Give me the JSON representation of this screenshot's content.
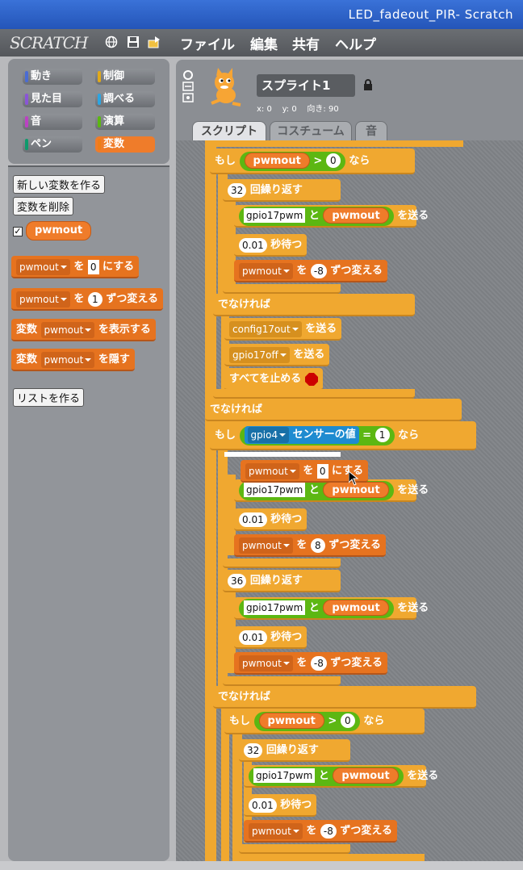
{
  "window": {
    "title": "LED_fadeout_PIR- Scratch"
  },
  "menubar": {
    "logo": "SCRATCH",
    "items": [
      "ファイル",
      "編集",
      "共有",
      "ヘルプ"
    ],
    "icons": [
      "globe-icon",
      "save-icon",
      "share-icon"
    ]
  },
  "categories": [
    {
      "label": "動き",
      "color": "#4a6cd4"
    },
    {
      "label": "制御",
      "color": "#e1a91a"
    },
    {
      "label": "見た目",
      "color": "#8a55d7"
    },
    {
      "label": "調べる",
      "color": "#2ca5e2"
    },
    {
      "label": "音",
      "color": "#bb42c3"
    },
    {
      "label": "演算",
      "color": "#5cb712"
    },
    {
      "label": "ペン",
      "color": "#0e9a6c"
    },
    {
      "label": "変数",
      "color": "#ee7d16"
    }
  ],
  "palette": {
    "new_var": "新しい変数を作る",
    "delete_var": "変数を削除",
    "var_name": "pwmout",
    "check": "✓",
    "set_block": {
      "var": "pwmout",
      "to": "を",
      "value": "0",
      "suffix": "にする"
    },
    "change_block": {
      "var": "pwmout",
      "by": "を",
      "value": "1",
      "suffix": "ずつ変える"
    },
    "show_block": {
      "prefix": "変数",
      "var": "pwmout",
      "suffix": "を表示する"
    },
    "hide_block": {
      "prefix": "変数",
      "var": "pwmout",
      "suffix": "を隠す"
    },
    "new_list": "リストを作る"
  },
  "sprite": {
    "name": "スプライト1",
    "x_label": "x:",
    "x": "0",
    "y_label": "y:",
    "y": "0",
    "dir_label": "向き:",
    "dir": "90"
  },
  "tabs": [
    "スクリプト",
    "コスチューム",
    "音"
  ],
  "script": {
    "if": "もし",
    "then": "なら",
    "else": "でなければ",
    "repeat": "回繰り返す",
    "wait": "秒待つ",
    "send": "を送る",
    "join": "と",
    "change_to": "を",
    "change_by": "ずつ変える",
    "set_to": "にする",
    "stop_all": "すべてを止める",
    "sensor": "センサーの値",
    "gt": ">",
    "eq": "=",
    "var": "pwmout",
    "gpio17pwm": "gpio17pwm",
    "config17out": "config17out",
    "gpio17off": "gpio17off",
    "gpio4": "gpio4",
    "n32": "32",
    "n36": "36",
    "n001": "0.01",
    "n0": "0",
    "n1": "1",
    "n8": "8",
    "nm8": "-8"
  }
}
